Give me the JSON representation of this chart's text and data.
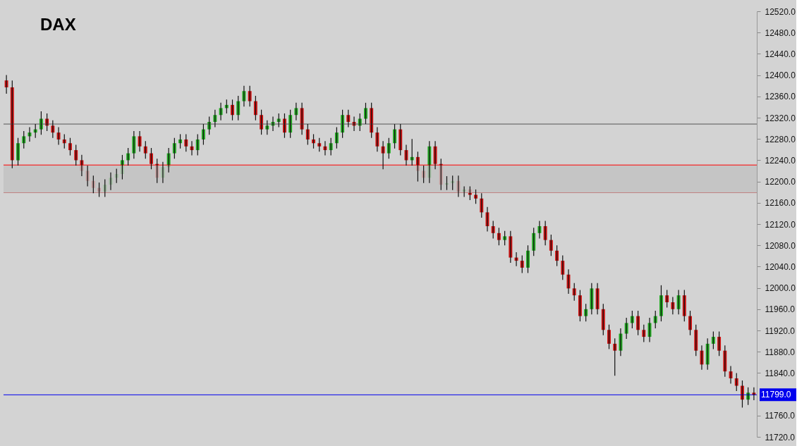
{
  "chart_data": {
    "type": "candlestick",
    "title": "DAX",
    "categories": [
      null,
      null,
      null,
      null,
      null,
      null,
      null,
      null,
      null,
      null,
      null,
      null,
      null,
      null,
      null,
      null,
      null,
      null,
      null,
      null,
      null,
      null,
      null,
      null,
      null,
      null,
      null,
      null,
      null,
      null,
      null,
      null,
      null,
      null,
      null,
      null,
      null,
      null,
      null,
      null,
      null,
      null,
      null,
      null,
      null,
      null,
      null,
      null,
      null,
      null,
      null,
      null,
      null,
      null,
      null,
      null,
      null,
      null,
      null,
      null,
      null,
      null,
      null,
      null,
      null,
      null,
      null,
      null,
      null,
      null,
      null,
      null,
      null,
      null,
      null,
      null,
      null,
      null,
      null,
      null,
      null,
      null,
      null,
      null,
      null,
      null,
      null,
      null,
      null,
      null,
      null,
      null,
      null,
      null,
      null,
      null,
      null,
      null,
      null,
      null,
      null,
      null,
      null,
      null,
      null,
      null,
      null,
      null,
      null,
      null,
      null,
      null,
      null,
      null,
      null,
      null,
      null,
      null,
      null,
      null,
      null,
      null,
      null,
      null,
      null,
      null,
      null,
      null,
      null,
      null
    ],
    "ohlc": [
      [
        12390,
        12400,
        12365,
        12377
      ],
      [
        12377,
        12390,
        12225,
        12240
      ],
      [
        12240,
        12282,
        12230,
        12272
      ],
      [
        12272,
        12295,
        12262,
        12285
      ],
      [
        12285,
        12302,
        12275,
        12292
      ],
      [
        12292,
        12308,
        12282,
        12298
      ],
      [
        12298,
        12332,
        12288,
        12318
      ],
      [
        12318,
        12328,
        12295,
        12305
      ],
      [
        12305,
        12315,
        12282,
        12292
      ],
      [
        12292,
        12302,
        12269,
        12279
      ],
      [
        12279,
        12289,
        12262,
        12272
      ],
      [
        12272,
        12282,
        12249,
        12259
      ],
      [
        12259,
        12269,
        12230,
        12240
      ],
      [
        12240,
        12250,
        12210,
        12220
      ],
      [
        12220,
        12230,
        12191,
        12201
      ],
      [
        12201,
        12211,
        12178,
        12188
      ],
      [
        12188,
        12198,
        12171,
        12181
      ],
      [
        12181,
        12204,
        12171,
        12194
      ],
      [
        12194,
        12217,
        12184,
        12207
      ],
      [
        12207,
        12224,
        12197,
        12214
      ],
      [
        12214,
        12250,
        12204,
        12240
      ],
      [
        12240,
        12263,
        12230,
        12253
      ],
      [
        12253,
        12295,
        12243,
        12285
      ],
      [
        12285,
        12295,
        12256,
        12266
      ],
      [
        12266,
        12276,
        12243,
        12253
      ],
      [
        12253,
        12263,
        12223,
        12233
      ],
      [
        12233,
        12243,
        12197,
        12207
      ],
      [
        12207,
        12237,
        12197,
        12227
      ],
      [
        12227,
        12263,
        12217,
        12253
      ],
      [
        12253,
        12282,
        12243,
        12272
      ],
      [
        12272,
        12289,
        12262,
        12279
      ],
      [
        12279,
        12289,
        12256,
        12266
      ],
      [
        12266,
        12276,
        12249,
        12259
      ],
      [
        12259,
        12289,
        12249,
        12279
      ],
      [
        12279,
        12308,
        12269,
        12298
      ],
      [
        12298,
        12322,
        12288,
        12312
      ],
      [
        12312,
        12335,
        12302,
        12325
      ],
      [
        12325,
        12348,
        12315,
        12338
      ],
      [
        12338,
        12354,
        12328,
        12344
      ],
      [
        12344,
        12354,
        12315,
        12325
      ],
      [
        12325,
        12361,
        12315,
        12351
      ],
      [
        12351,
        12380,
        12341,
        12370
      ],
      [
        12370,
        12380,
        12341,
        12351
      ],
      [
        12351,
        12361,
        12315,
        12325
      ],
      [
        12325,
        12335,
        12288,
        12298
      ],
      [
        12298,
        12315,
        12288,
        12305
      ],
      [
        12305,
        12322,
        12295,
        12312
      ],
      [
        12312,
        12328,
        12302,
        12318
      ],
      [
        12318,
        12328,
        12282,
        12292
      ],
      [
        12292,
        12335,
        12282,
        12325
      ],
      [
        12325,
        12348,
        12315,
        12338
      ],
      [
        12338,
        12348,
        12288,
        12298
      ],
      [
        12298,
        12308,
        12269,
        12279
      ],
      [
        12279,
        12289,
        12262,
        12272
      ],
      [
        12272,
        12282,
        12256,
        12266
      ],
      [
        12266,
        12276,
        12249,
        12259
      ],
      [
        12259,
        12282,
        12249,
        12272
      ],
      [
        12272,
        12302,
        12262,
        12292
      ],
      [
        12292,
        12335,
        12282,
        12325
      ],
      [
        12325,
        12335,
        12302,
        12312
      ],
      [
        12312,
        12322,
        12295,
        12305
      ],
      [
        12305,
        12328,
        12295,
        12318
      ],
      [
        12318,
        12348,
        12308,
        12338
      ],
      [
        12338,
        12348,
        12282,
        12292
      ],
      [
        12292,
        12302,
        12256,
        12266
      ],
      [
        12266,
        12276,
        12223,
        12253
      ],
      [
        12253,
        12282,
        12243,
        12272
      ],
      [
        12272,
        12308,
        12262,
        12298
      ],
      [
        12298,
        12308,
        12249,
        12259
      ],
      [
        12259,
        12269,
        12230,
        12240
      ],
      [
        12240,
        12280,
        12230,
        12246
      ],
      [
        12246,
        12256,
        12200,
        12220
      ],
      [
        12220,
        12230,
        12197,
        12207
      ],
      [
        12207,
        12276,
        12197,
        12266
      ],
      [
        12266,
        12276,
        12223,
        12233
      ],
      [
        12233,
        12243,
        12184,
        12194
      ],
      [
        12194,
        12210,
        12184,
        12197
      ],
      [
        12197,
        12211,
        12184,
        12201
      ],
      [
        12201,
        12211,
        12171,
        12181
      ],
      [
        12181,
        12191,
        12171,
        12185
      ],
      [
        12185,
        12191,
        12165,
        12175
      ],
      [
        12175,
        12185,
        12158,
        12168
      ],
      [
        12168,
        12178,
        12132,
        12142
      ],
      [
        12142,
        12152,
        12106,
        12116
      ],
      [
        12116,
        12126,
        12093,
        12103
      ],
      [
        12103,
        12113,
        12080,
        12090
      ],
      [
        12090,
        12107,
        12080,
        12097
      ],
      [
        12097,
        12107,
        12047,
        12057
      ],
      [
        12057,
        12067,
        12041,
        12051
      ],
      [
        12051,
        12061,
        12028,
        12038
      ],
      [
        12038,
        12080,
        12028,
        12070
      ],
      [
        12070,
        12113,
        12060,
        12103
      ],
      [
        12103,
        12126,
        12093,
        12116
      ],
      [
        12116,
        12126,
        12080,
        12090
      ],
      [
        12090,
        12100,
        12060,
        12070
      ],
      [
        12070,
        12080,
        12041,
        12051
      ],
      [
        12051,
        12061,
        12015,
        12025
      ],
      [
        12025,
        12035,
        11989,
        11999
      ],
      [
        11999,
        12009,
        11976,
        11986
      ],
      [
        11986,
        11996,
        11937,
        11947
      ],
      [
        11947,
        11970,
        11937,
        11960
      ],
      [
        11960,
        12009,
        11950,
        11999
      ],
      [
        11999,
        12009,
        11950,
        11960
      ],
      [
        11960,
        11970,
        11911,
        11921
      ],
      [
        11921,
        11931,
        11885,
        11895
      ],
      [
        11895,
        11905,
        11835,
        11882
      ],
      [
        11882,
        11924,
        11872,
        11914
      ],
      [
        11914,
        11944,
        11904,
        11934
      ],
      [
        11934,
        11957,
        11924,
        11947
      ],
      [
        11947,
        11957,
        11911,
        11921
      ],
      [
        11921,
        11931,
        11898,
        11908
      ],
      [
        11908,
        11944,
        11898,
        11934
      ],
      [
        11934,
        11957,
        11924,
        11947
      ],
      [
        11947,
        12005,
        11937,
        11986
      ],
      [
        11986,
        11996,
        11963,
        11973
      ],
      [
        11973,
        11983,
        11950,
        11960
      ],
      [
        11960,
        11996,
        11950,
        11986
      ],
      [
        11986,
        11996,
        11937,
        11947
      ],
      [
        11947,
        11957,
        11911,
        11921
      ],
      [
        11921,
        11931,
        11872,
        11882
      ],
      [
        11882,
        11892,
        11846,
        11856
      ],
      [
        11856,
        11905,
        11846,
        11895
      ],
      [
        11895,
        11918,
        11885,
        11908
      ],
      [
        11908,
        11918,
        11872,
        11882
      ],
      [
        11882,
        11892,
        11833,
        11843
      ],
      [
        11843,
        11853,
        11820,
        11830
      ],
      [
        11830,
        11840,
        11806,
        11816
      ],
      [
        11816,
        11826,
        11775,
        11790
      ],
      [
        11790,
        11813,
        11780,
        11803
      ],
      [
        11803,
        11813,
        11789,
        11799
      ]
    ],
    "ylim": [
      11720,
      12520
    ],
    "yticks": [
      {
        "value": 11720,
        "label": "11720.0"
      },
      {
        "value": 11760,
        "label": "11760.0"
      },
      {
        "value": 11840,
        "label": "11840.0"
      },
      {
        "value": 11880,
        "label": "11880.0"
      },
      {
        "value": 11920,
        "label": "11920.0"
      },
      {
        "value": 11960,
        "label": "11960.0"
      },
      {
        "value": 12000,
        "label": "12000.0"
      },
      {
        "value": 12040,
        "label": "12040.0"
      },
      {
        "value": 12080,
        "label": "12080.0"
      },
      {
        "value": 12120,
        "label": "12120.0"
      },
      {
        "value": 12160,
        "label": "12160.0"
      },
      {
        "value": 12200,
        "label": "12200.0"
      },
      {
        "value": 12240,
        "label": "12240.0"
      },
      {
        "value": 12280,
        "label": "12280.0"
      },
      {
        "value": 12320,
        "label": "12320.0"
      },
      {
        "value": 12360,
        "label": "12360.0"
      },
      {
        "value": 12400,
        "label": "12400.0"
      },
      {
        "value": 12440,
        "label": "12440.0"
      },
      {
        "value": 12480,
        "label": "12480.0"
      },
      {
        "value": 12520,
        "label": "12520.0"
      }
    ],
    "bands": [
      {
        "axis": "y",
        "from": 12179,
        "to": 12231,
        "color": "#c2c2c2"
      }
    ],
    "ref_lines": [
      {
        "axis": "y",
        "value": 12308,
        "color": "#555555"
      },
      {
        "axis": "y",
        "value": 12231,
        "color": "#ff0000"
      },
      {
        "axis": "y",
        "value": 12179,
        "color": "#c08080"
      },
      {
        "axis": "y",
        "value": 11799,
        "label": "11799.0",
        "color": "#0000ee"
      }
    ],
    "grid": false
  }
}
